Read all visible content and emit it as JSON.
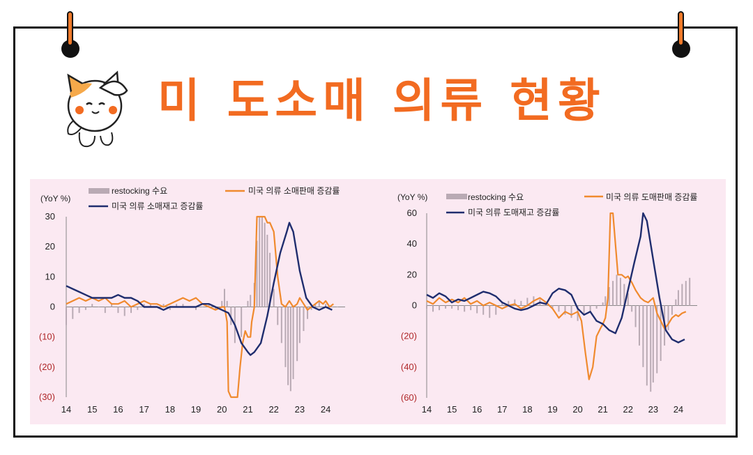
{
  "title": "미 도소매 의류 현황",
  "colors": {
    "accent": "#f26b21",
    "navy": "#1f2d6e",
    "bar": "#b9aab4",
    "panel": "#fbe9f2"
  },
  "icons": {
    "mascot": "cat-saluting-icon",
    "pins": "pushpin-icon"
  },
  "chart_data": [
    {
      "type": "line",
      "ylabel": "(YoY %)",
      "yticks": [
        "30",
        "20",
        "10",
        "0",
        "(10)",
        "(20)",
        "(30)"
      ],
      "ylim": [
        -30,
        30
      ],
      "xticks": [
        "14",
        "15",
        "16",
        "17",
        "18",
        "19",
        "20",
        "21",
        "22",
        "23",
        "24"
      ],
      "xlim": [
        2014,
        2024.75
      ],
      "legend": [
        "restocking 수요",
        "미국 의류 소매판매 증감률",
        "미국 의류 소매재고 증감률"
      ],
      "series": [
        {
          "name": "restocking 수요",
          "kind": "bar",
          "x": [
            2014.0,
            2014.25,
            2014.5,
            2014.75,
            2015.0,
            2015.25,
            2015.5,
            2015.75,
            2016.0,
            2016.25,
            2016.5,
            2016.75,
            2017.0,
            2017.25,
            2017.5,
            2017.75,
            2018.0,
            2018.25,
            2018.5,
            2018.75,
            2019.0,
            2019.25,
            2019.5,
            2019.75,
            2020.0,
            2020.1,
            2020.2,
            2020.35,
            2020.5,
            2020.75,
            2021.0,
            2021.1,
            2021.25,
            2021.35,
            2021.45,
            2021.55,
            2021.65,
            2021.75,
            2021.85,
            2022.0,
            2022.15,
            2022.3,
            2022.45,
            2022.55,
            2022.65,
            2022.75,
            2022.9,
            2023.0,
            2023.15,
            2023.3,
            2023.45,
            2023.6,
            2023.75,
            2024.0,
            2024.25,
            2024.45
          ],
          "values": [
            -6,
            -4,
            -2,
            -1,
            1,
            0,
            -2,
            1,
            -2,
            -3,
            -2,
            -1,
            1,
            1,
            0,
            1,
            -1,
            1,
            1,
            0,
            -1,
            0,
            1,
            -1,
            2,
            6,
            2,
            -6,
            -12,
            -10,
            2,
            4,
            8,
            22,
            30,
            30,
            28,
            24,
            18,
            6,
            -6,
            -12,
            -20,
            -26,
            -28,
            -24,
            -18,
            -12,
            -8,
            -4,
            -1,
            1,
            2,
            1,
            0,
            0
          ]
        },
        {
          "name": "미국 의류 소매판매 증감률",
          "kind": "line",
          "x": [
            2014.0,
            2014.25,
            2014.5,
            2014.75,
            2015.0,
            2015.25,
            2015.5,
            2015.75,
            2016.0,
            2016.25,
            2016.5,
            2016.75,
            2017.0,
            2017.25,
            2017.5,
            2017.75,
            2018.0,
            2018.25,
            2018.5,
            2018.75,
            2019.0,
            2019.25,
            2019.5,
            2019.75,
            2020.0,
            2020.1,
            2020.2,
            2020.25,
            2020.35,
            2020.5,
            2020.6,
            2020.7,
            2020.8,
            2020.9,
            2021.0,
            2021.1,
            2021.15,
            2021.25,
            2021.35,
            2021.5,
            2021.65,
            2021.75,
            2021.85,
            2022.0,
            2022.15,
            2022.3,
            2022.45,
            2022.6,
            2022.75,
            2022.9,
            2023.0,
            2023.15,
            2023.3,
            2023.45,
            2023.6,
            2023.75,
            2023.9,
            2024.0,
            2024.15,
            2024.3
          ],
          "values": [
            1,
            2,
            3,
            2,
            3,
            2,
            3,
            1,
            1,
            2,
            0,
            1,
            2,
            1,
            1,
            0,
            1,
            2,
            3,
            2,
            3,
            1,
            0,
            -1,
            0,
            0,
            -5,
            -28,
            -30,
            -30,
            -30,
            -20,
            -12,
            -8,
            -10,
            -10,
            -5,
            0,
            30,
            30,
            30,
            28,
            28,
            25,
            10,
            1,
            0,
            2,
            0,
            1,
            3,
            1,
            -1,
            0,
            1,
            2,
            1,
            2,
            0,
            1
          ]
        },
        {
          "name": "미국 의류 소매재고 증감률",
          "kind": "line",
          "x": [
            2014.0,
            2014.25,
            2014.5,
            2014.75,
            2015.0,
            2015.25,
            2015.5,
            2015.75,
            2016.0,
            2016.25,
            2016.5,
            2016.75,
            2017.0,
            2017.25,
            2017.5,
            2017.75,
            2018.0,
            2018.25,
            2018.5,
            2018.75,
            2019.0,
            2019.25,
            2019.5,
            2019.75,
            2020.0,
            2020.25,
            2020.5,
            2020.75,
            2021.0,
            2021.1,
            2021.25,
            2021.5,
            2021.75,
            2022.0,
            2022.25,
            2022.5,
            2022.6,
            2022.75,
            2023.0,
            2023.25,
            2023.5,
            2023.75,
            2024.0,
            2024.25
          ],
          "values": [
            7,
            6,
            5,
            4,
            3,
            3,
            3,
            3,
            4,
            3,
            3,
            2,
            0,
            0,
            0,
            -1,
            0,
            0,
            0,
            0,
            0,
            1,
            1,
            0,
            -1,
            -2,
            -6,
            -12,
            -15,
            -16,
            -15,
            -12,
            -3,
            8,
            18,
            25,
            28,
            25,
            12,
            3,
            0,
            -1,
            0,
            -1
          ]
        }
      ]
    },
    {
      "type": "line",
      "ylabel": "(YoY %)",
      "yticks": [
        "60",
        "40",
        "20",
        "0",
        "(20)",
        "(40)",
        "(60)"
      ],
      "ylim": [
        -60,
        60
      ],
      "xticks": [
        "14",
        "15",
        "16",
        "17",
        "18",
        "19",
        "20",
        "21",
        "22",
        "23",
        "24"
      ],
      "xlim": [
        2014,
        2024.75
      ],
      "legend": [
        "restocking 수요",
        "미국 의류 도매판매 증감률",
        "미국 의류 도매재고 증감률"
      ],
      "series": [
        {
          "name": "restocking 수요",
          "kind": "bar",
          "x": [
            2014.0,
            2014.25,
            2014.5,
            2014.75,
            2015.0,
            2015.25,
            2015.5,
            2015.75,
            2016.0,
            2016.25,
            2016.5,
            2016.75,
            2017.0,
            2017.25,
            2017.5,
            2017.75,
            2018.0,
            2018.25,
            2018.5,
            2018.75,
            2019.0,
            2019.25,
            2019.5,
            2019.75,
            2020.0,
            2020.25,
            2020.5,
            2020.75,
            2021.0,
            2021.1,
            2021.25,
            2021.4,
            2021.55,
            2021.7,
            2021.85,
            2022.0,
            2022.15,
            2022.3,
            2022.45,
            2022.6,
            2022.75,
            2022.9,
            2023.0,
            2023.15,
            2023.3,
            2023.45,
            2023.6,
            2023.75,
            2023.9,
            2024.0,
            2024.15,
            2024.3,
            2024.45
          ],
          "values": [
            -2,
            -4,
            -3,
            -2,
            -2,
            -3,
            -4,
            -3,
            -5,
            -6,
            -8,
            -6,
            2,
            3,
            4,
            3,
            5,
            6,
            4,
            1,
            -2,
            -4,
            -6,
            -8,
            -10,
            -6,
            -4,
            -2,
            2,
            6,
            12,
            16,
            20,
            18,
            14,
            8,
            -4,
            -14,
            -26,
            -40,
            -52,
            -56,
            -50,
            -44,
            -36,
            -26,
            -16,
            -6,
            4,
            10,
            14,
            16,
            18
          ]
        },
        {
          "name": "미국 의류 도매판매 증감률",
          "kind": "line",
          "x": [
            2014.0,
            2014.25,
            2014.5,
            2014.75,
            2015.0,
            2015.25,
            2015.5,
            2015.75,
            2016.0,
            2016.25,
            2016.5,
            2016.75,
            2017.0,
            2017.25,
            2017.5,
            2017.75,
            2018.0,
            2018.25,
            2018.5,
            2018.75,
            2019.0,
            2019.25,
            2019.5,
            2019.75,
            2020.0,
            2020.15,
            2020.3,
            2020.45,
            2020.6,
            2020.75,
            2020.9,
            2021.0,
            2021.1,
            2021.2,
            2021.3,
            2021.4,
            2021.5,
            2021.6,
            2021.75,
            2021.9,
            2022.0,
            2022.15,
            2022.3,
            2022.5,
            2022.65,
            2022.8,
            2023.0,
            2023.15,
            2023.3,
            2023.45,
            2023.6,
            2023.75,
            2023.9,
            2024.0,
            2024.15,
            2024.3
          ],
          "values": [
            3,
            1,
            5,
            2,
            4,
            2,
            5,
            1,
            3,
            0,
            2,
            0,
            -2,
            0,
            1,
            -2,
            0,
            3,
            5,
            2,
            -2,
            -8,
            -4,
            -6,
            -4,
            -10,
            -30,
            -48,
            -40,
            -20,
            -15,
            -12,
            -8,
            5,
            60,
            60,
            40,
            20,
            20,
            18,
            19,
            15,
            10,
            5,
            3,
            2,
            5,
            -5,
            -10,
            -15,
            -12,
            -8,
            -6,
            -7,
            -5,
            -4
          ]
        },
        {
          "name": "미국 의류 도매재고 증감률",
          "kind": "line",
          "x": [
            2014.0,
            2014.25,
            2014.5,
            2014.75,
            2015.0,
            2015.25,
            2015.5,
            2015.75,
            2016.0,
            2016.25,
            2016.5,
            2016.75,
            2017.0,
            2017.25,
            2017.5,
            2017.75,
            2018.0,
            2018.25,
            2018.5,
            2018.75,
            2019.0,
            2019.25,
            2019.5,
            2019.75,
            2020.0,
            2020.25,
            2020.5,
            2020.75,
            2021.0,
            2021.25,
            2021.5,
            2021.75,
            2022.0,
            2022.25,
            2022.5,
            2022.6,
            2022.75,
            2023.0,
            2023.25,
            2023.5,
            2023.75,
            2024.0,
            2024.25
          ],
          "values": [
            7,
            5,
            8,
            6,
            2,
            4,
            3,
            5,
            7,
            9,
            8,
            6,
            2,
            0,
            -2,
            -3,
            -2,
            0,
            2,
            1,
            8,
            11,
            10,
            7,
            -2,
            -6,
            -4,
            -10,
            -12,
            -16,
            -18,
            -8,
            10,
            28,
            45,
            60,
            55,
            30,
            5,
            -16,
            -22,
            -24,
            -22
          ]
        }
      ]
    }
  ]
}
